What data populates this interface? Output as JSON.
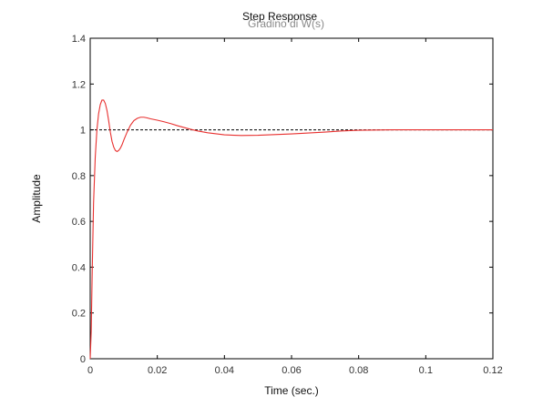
{
  "chart_data": {
    "type": "line",
    "title": "Step Response",
    "subtitle": "Gradino di W(s)",
    "xlabel": "Time (sec.)",
    "ylabel": "Amplitude",
    "xlim": [
      0,
      0.12
    ],
    "ylim": [
      0,
      1.4
    ],
    "x_ticks": [
      "0",
      "0.02",
      "0.04",
      "0.06",
      "0.08",
      "0.1",
      "0.12"
    ],
    "y_ticks": [
      "0",
      "0.2",
      "0.4",
      "0.6",
      "0.8",
      "1",
      "1.2",
      "1.4"
    ],
    "grid": false,
    "reference_line": {
      "y": 1,
      "style": "dashed",
      "color": "#000000"
    },
    "series": [
      {
        "color": "#e8302f",
        "x": [
          0,
          0.0003,
          0.0006,
          0.001,
          0.0015,
          0.002,
          0.0025,
          0.003,
          0.0035,
          0.004,
          0.0045,
          0.005,
          0.0055,
          0.006,
          0.0065,
          0.007,
          0.0075,
          0.008,
          0.0085,
          0.009,
          0.0095,
          0.01,
          0.011,
          0.012,
          0.013,
          0.014,
          0.015,
          0.016,
          0.017,
          0.018,
          0.02,
          0.022,
          0.024,
          0.026,
          0.028,
          0.03,
          0.032,
          0.035,
          0.04,
          0.045,
          0.05,
          0.055,
          0.06,
          0.065,
          0.07,
          0.075,
          0.08,
          0.09,
          0.1,
          0.11,
          0.12
        ],
        "y": [
          0,
          0.12,
          0.38,
          0.68,
          0.88,
          1.0,
          1.07,
          1.11,
          1.13,
          1.13,
          1.115,
          1.085,
          1.04,
          0.99,
          0.95,
          0.925,
          0.91,
          0.905,
          0.91,
          0.92,
          0.935,
          0.955,
          0.99,
          1.02,
          1.04,
          1.05,
          1.055,
          1.055,
          1.052,
          1.048,
          1.042,
          1.035,
          1.027,
          1.018,
          1.01,
          1.002,
          0.995,
          0.987,
          0.978,
          0.975,
          0.976,
          0.979,
          0.982,
          0.986,
          0.99,
          0.995,
          0.998,
          1.0,
          1.0,
          1.0,
          1.0
        ]
      }
    ]
  }
}
